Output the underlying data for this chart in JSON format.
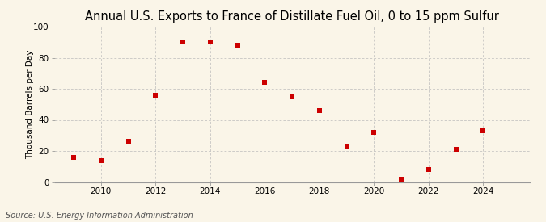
{
  "title": "Annual U.S. Exports to France of Distillate Fuel Oil, 0 to 15 ppm Sulfur",
  "ylabel": "Thousand Barrels per Day",
  "source": "Source: U.S. Energy Information Administration",
  "years": [
    2009,
    2010,
    2011,
    2012,
    2013,
    2014,
    2015,
    2016,
    2017,
    2018,
    2019,
    2020,
    2021,
    2022,
    2023,
    2024
  ],
  "values": [
    16,
    14,
    26,
    56,
    90,
    90,
    88,
    64,
    55,
    46,
    23,
    32,
    2,
    8,
    21,
    33
  ],
  "marker_color": "#cc0000",
  "marker": "s",
  "marker_size": 18,
  "xlim": [
    2008.3,
    2025.7
  ],
  "ylim": [
    0,
    100
  ],
  "yticks": [
    0,
    20,
    40,
    60,
    80,
    100
  ],
  "xticks": [
    2010,
    2012,
    2014,
    2016,
    2018,
    2020,
    2022,
    2024
  ],
  "background_color": "#faf5e8",
  "grid_color": "#bbbbbb",
  "title_fontsize": 10.5,
  "label_fontsize": 7.5,
  "tick_fontsize": 7.5,
  "source_fontsize": 7
}
